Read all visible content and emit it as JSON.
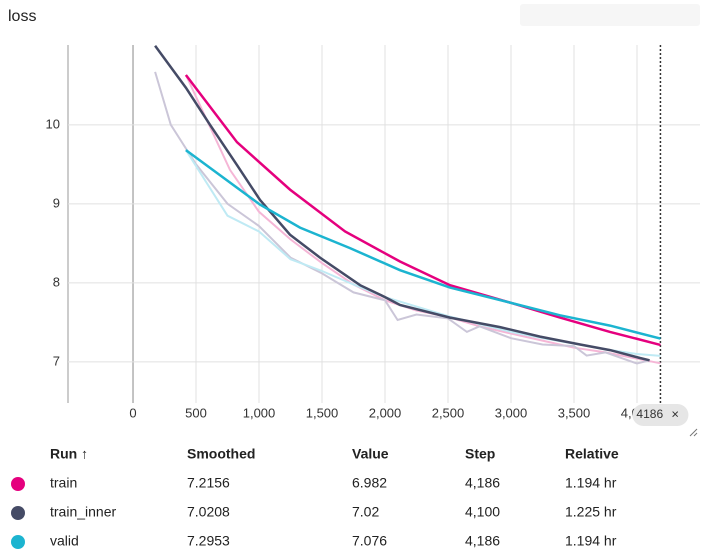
{
  "chart_data": {
    "type": "line",
    "title": "loss",
    "xlim": [
      -516,
      4500
    ],
    "ylim": [
      6.48,
      11.01
    ],
    "xticks": [
      0,
      500,
      {
        "value": 1000,
        "label": "1,000"
      },
      {
        "value": 1500,
        "label": "1,500"
      },
      {
        "value": 2000,
        "label": "2,000"
      },
      {
        "value": 2500,
        "label": "2,500"
      },
      {
        "value": 3000,
        "label": "3,000"
      },
      {
        "value": 3500,
        "label": "3,500"
      },
      {
        "value": 4000,
        "label": "4,000"
      }
    ],
    "yticks": [
      7,
      8,
      9,
      10
    ],
    "grid": true,
    "hover_step": 4186,
    "series": [
      {
        "name": "train",
        "color": "#e5007e",
        "x": [
          420,
          825,
          1246,
          1683,
          2119,
          2516,
          2992,
          3389,
          3786,
          4186
        ],
        "values": [
          10.63,
          9.78,
          9.18,
          8.65,
          8.27,
          7.97,
          7.75,
          7.56,
          7.38,
          7.2156
        ],
        "raw_color": "#f5b6d6",
        "raw_x": [
          420,
          770,
          1000,
          1250,
          1500,
          1750,
          2000,
          2250,
          2500,
          2750,
          3000,
          3250,
          3500,
          3750,
          4000,
          4186
        ],
        "raw_values": [
          10.63,
          9.43,
          8.9,
          8.55,
          8.25,
          7.98,
          7.78,
          7.65,
          7.57,
          7.45,
          7.36,
          7.27,
          7.18,
          7.12,
          7.04,
          6.982
        ]
      },
      {
        "name": "train_inner",
        "color": "#454b66",
        "x": [
          175,
          420,
          611,
          825,
          1008,
          1246,
          1484,
          1802,
          2000,
          2119,
          2516,
          2913,
          3230,
          3548,
          3786,
          4024,
          4100
        ],
        "values": [
          11.0,
          10.47,
          10.0,
          9.49,
          9.05,
          8.61,
          8.32,
          7.97,
          7.82,
          7.72,
          7.56,
          7.44,
          7.32,
          7.22,
          7.15,
          7.05,
          7.0208
        ],
        "raw_color": "#cbc6d8",
        "raw_x": [
          175,
          300,
          500,
          750,
          1000,
          1250,
          1500,
          1750,
          2000,
          2100,
          2250,
          2500,
          2650,
          2750,
          3000,
          3250,
          3500,
          3600,
          3750,
          4000,
          4100
        ],
        "raw_values": [
          10.67,
          10.0,
          9.5,
          9.0,
          8.72,
          8.32,
          8.12,
          7.88,
          7.78,
          7.53,
          7.6,
          7.55,
          7.38,
          7.45,
          7.3,
          7.22,
          7.2,
          7.08,
          7.12,
          6.98,
          7.02
        ]
      },
      {
        "name": "valid",
        "color": "#1cb4d0",
        "x": [
          420,
          1008,
          1325,
          1722,
          2119,
          2516,
          2992,
          3389,
          3786,
          4186
        ],
        "values": [
          9.68,
          8.99,
          8.7,
          8.44,
          8.16,
          7.94,
          7.75,
          7.59,
          7.46,
          7.2953
        ],
        "raw_color": "#bfeaf4",
        "raw_x": [
          420,
          750,
          1000,
          1250,
          1500,
          1750,
          2000,
          2250,
          2500,
          2750,
          3000,
          3250,
          3500,
          3750,
          4000,
          4186
        ],
        "raw_values": [
          9.68,
          8.85,
          8.65,
          8.3,
          8.15,
          7.98,
          7.82,
          7.7,
          7.58,
          7.48,
          7.38,
          7.3,
          7.23,
          7.16,
          7.1,
          7.076
        ]
      }
    ]
  },
  "table": {
    "columns": [
      "Run ↑",
      "Smoothed",
      "Value",
      "Step",
      "Relative"
    ],
    "rows": [
      [
        "train",
        7.2156,
        6.982,
        {
          "value": 4186,
          "label": "4,186"
        },
        "1.194 hr"
      ],
      [
        "train_inner",
        7.0208,
        7.02,
        {
          "value": 4100,
          "label": "4,100"
        },
        "1.225 hr"
      ],
      [
        "valid",
        7.2953,
        7.076,
        {
          "value": 4186,
          "label": "4,186"
        },
        "1.194 hr"
      ]
    ]
  }
}
